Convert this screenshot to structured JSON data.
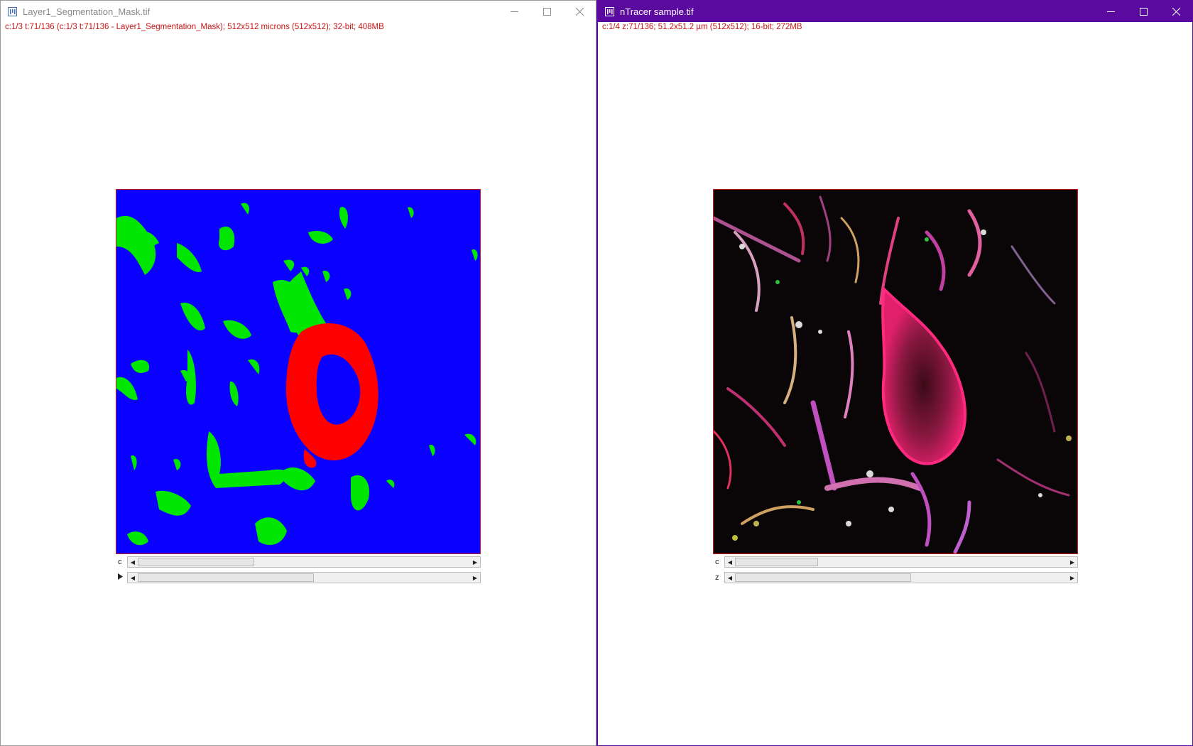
{
  "left_window": {
    "title": "Layer1_Segmentation_Mask.tif",
    "info": "c:1/3 t:71/136 (c:1/3 t:71/136 - Layer1_Segmentation_Mask); 512x512 microns (512x512); 32-bit; 408MB",
    "sliders": [
      {
        "label": "c",
        "thumb_start": 0.0,
        "thumb_end": 0.35
      },
      {
        "label": "",
        "icon": "play-icon",
        "thumb_start": 0.0,
        "thumb_end": 0.53
      }
    ],
    "colors": {
      "background": "#0a00ff",
      "cell": "#ff0000",
      "neurites": "#00e600"
    }
  },
  "right_window": {
    "title": "nTracer sample.tif",
    "info": "c:1/4 z:71/136; 51.2x51.2 µm (512x512); 16-bit; 272MB",
    "sliders": [
      {
        "label": "c",
        "thumb_start": 0.0,
        "thumb_end": 0.25
      },
      {
        "label": "z",
        "thumb_start": 0.0,
        "thumb_end": 0.53
      }
    ],
    "colors": {
      "titlebar": "#5b0aa0",
      "cell": "#e0206a",
      "background": "#0a0507"
    }
  },
  "window_controls": [
    "minimize-icon",
    "maximize-icon",
    "close-icon"
  ]
}
